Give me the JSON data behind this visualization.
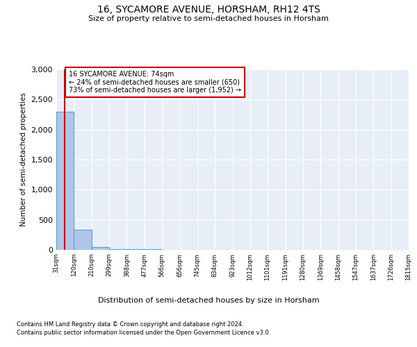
{
  "title1": "16, SYCAMORE AVENUE, HORSHAM, RH12 4TS",
  "title2": "Size of property relative to semi-detached houses in Horsham",
  "xlabel": "Distribution of semi-detached houses by size in Horsham",
  "ylabel": "Number of semi-detached properties",
  "bin_edges": [
    31,
    120,
    210,
    299,
    388,
    477,
    566,
    656,
    745,
    834,
    923,
    1012,
    1101,
    1191,
    1280,
    1369,
    1458,
    1547,
    1637,
    1726,
    1815
  ],
  "bar_heights": [
    2300,
    330,
    50,
    15,
    10,
    8,
    5,
    4,
    3,
    2,
    2,
    2,
    1,
    1,
    1,
    1,
    1,
    1,
    1,
    1
  ],
  "bar_color": "#aec6e8",
  "bar_edge_color": "#5a9fd4",
  "property_size": 74,
  "property_label": "16 SYCAMORE AVENUE: 74sqm",
  "smaller_pct": 24,
  "smaller_count": 650,
  "larger_pct": 73,
  "larger_count": 1952,
  "red_line_color": "#cc0000",
  "annotation_box_color": "#ffffff",
  "annotation_box_edge": "#cc0000",
  "tick_labels": [
    "31sqm",
    "120sqm",
    "210sqm",
    "299sqm",
    "388sqm",
    "477sqm",
    "566sqm",
    "656sqm",
    "745sqm",
    "834sqm",
    "923sqm",
    "1012sqm",
    "1101sqm",
    "1191sqm",
    "1280sqm",
    "1369sqm",
    "1458sqm",
    "1547sqm",
    "1637sqm",
    "1726sqm",
    "1815sqm"
  ],
  "ylim": [
    0,
    3000
  ],
  "yticks": [
    0,
    500,
    1000,
    1500,
    2000,
    2500,
    3000
  ],
  "footnote1": "Contains HM Land Registry data © Crown copyright and database right 2024.",
  "footnote2": "Contains public sector information licensed under the Open Government Licence v3.0.",
  "bg_color": "#e8eef8",
  "fig_bg": "#ffffff",
  "grid_color": "#ffffff"
}
